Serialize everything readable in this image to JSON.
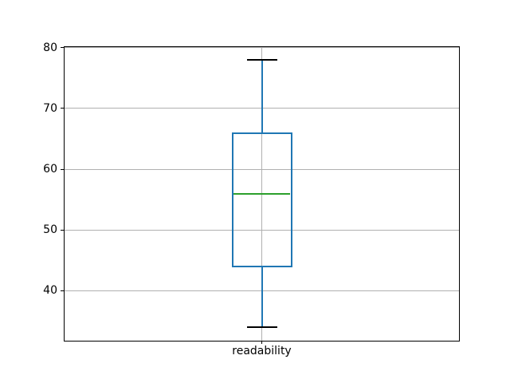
{
  "chart_data": {
    "type": "boxplot",
    "title": "",
    "xlabel": "",
    "ylabel": "",
    "categories": [
      "readability"
    ],
    "series": [
      {
        "name": "readability",
        "whisker_low": 34,
        "q1": 44,
        "median": 56,
        "q3": 66,
        "whisker_high": 78,
        "fliers": []
      }
    ],
    "yticks": [
      40,
      50,
      60,
      70,
      80
    ],
    "ylim": [
      31.8,
      80.2
    ],
    "xlim": [
      0.5,
      1.5
    ],
    "grid": true,
    "legend": false,
    "colors": {
      "box": "#1f77b4",
      "whisker": "#1f77b4",
      "median": "#2ca02c",
      "cap": "#000000",
      "grid": "#b0b0b0",
      "spine": "#000000",
      "text": "#000000",
      "background": "#ffffff"
    }
  }
}
